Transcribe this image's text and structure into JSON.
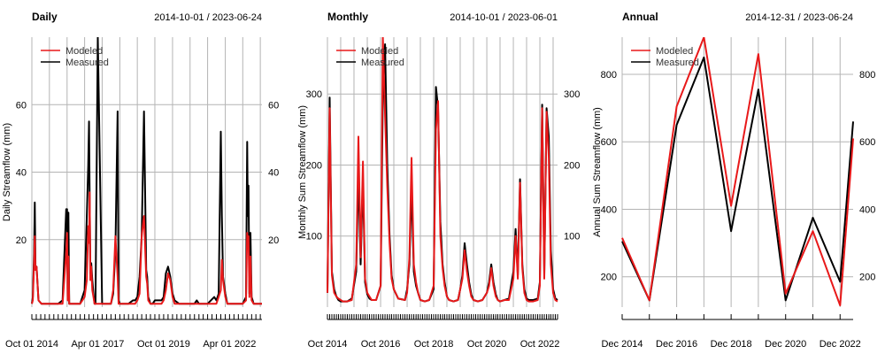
{
  "chart_data": [
    {
      "type": "line",
      "title": "Daily",
      "subtitle": "2014-10-01 / 2023-06-24",
      "xlabel": "",
      "ylabel": "Daily Streamflow (mm)",
      "ylim": [
        0,
        80
      ],
      "y_ticks": [
        20,
        40,
        60
      ],
      "right_y_ticks": [
        20,
        40,
        60
      ],
      "x_tick_labels": [
        "Oct 01 2014",
        "Apr 01 2017",
        "Oct 01 2019",
        "Apr 01 2022"
      ],
      "legend_position": "top-left",
      "grid": true,
      "x": [
        "2014-10-01",
        "2014-10-15",
        "2014-11-01",
        "2014-11-10",
        "2014-11-20",
        "2014-12-05",
        "2015-01-01",
        "2015-02-10",
        "2015-03-01",
        "2015-03-15",
        "2015-04-01",
        "2015-04-15",
        "2015-05-01",
        "2015-06-01",
        "2015-08-01",
        "2015-10-01",
        "2015-12-01",
        "2016-01-20",
        "2016-02-01",
        "2016-02-10",
        "2016-02-20",
        "2016-03-01",
        "2016-03-15",
        "2016-04-01",
        "2016-05-01",
        "2016-08-01",
        "2016-10-01",
        "2016-11-01",
        "2016-11-20",
        "2016-12-01",
        "2016-12-10",
        "2016-12-20",
        "2017-01-01",
        "2017-01-15",
        "2017-02-01",
        "2017-02-15",
        "2017-03-01",
        "2017-04-01",
        "2017-06-01",
        "2017-09-01",
        "2017-10-01",
        "2017-11-01",
        "2017-12-01",
        "2018-01-01",
        "2018-01-15",
        "2018-02-01",
        "2018-03-01",
        "2018-04-01",
        "2018-06-01",
        "2018-08-01",
        "2018-09-01",
        "2018-10-01",
        "2018-11-01",
        "2018-12-01",
        "2019-01-01",
        "2019-02-01",
        "2019-02-15",
        "2019-03-01",
        "2019-04-01",
        "2019-05-01",
        "2019-06-01",
        "2019-09-01",
        "2019-10-01",
        "2019-11-01",
        "2019-12-01",
        "2020-01-01",
        "2020-02-01",
        "2020-03-01",
        "2020-05-01",
        "2020-08-01",
        "2020-10-01",
        "2020-12-01",
        "2021-01-01",
        "2021-02-01",
        "2021-04-01",
        "2021-06-01",
        "2021-09-01",
        "2021-10-01",
        "2021-11-01",
        "2021-12-01",
        "2021-12-15",
        "2022-01-01",
        "2022-02-01",
        "2022-03-01",
        "2022-05-01",
        "2022-08-01",
        "2022-10-01",
        "2022-11-15",
        "2022-12-01",
        "2022-12-10",
        "2022-12-20",
        "2023-01-01",
        "2023-01-15",
        "2023-02-01",
        "2023-03-01",
        "2023-04-01",
        "2023-05-01",
        "2023-06-24"
      ],
      "series": [
        {
          "name": "Modeled",
          "color": "#e8191a",
          "values": [
            1,
            2,
            13,
            21,
            11,
            12,
            2,
            1,
            1,
            1,
            1,
            1,
            1,
            1,
            1,
            1,
            1,
            16,
            22,
            2,
            15,
            1,
            1,
            1,
            1,
            1,
            3,
            8,
            24,
            19,
            34,
            8,
            12,
            5,
            3,
            1,
            1,
            1,
            1,
            1,
            1,
            5,
            21,
            9,
            1,
            1,
            1,
            1,
            1,
            1,
            1,
            2,
            4,
            21,
            27,
            9,
            7,
            2,
            1,
            1,
            1,
            1,
            2,
            5,
            10,
            8,
            3,
            1,
            1,
            1,
            1,
            1,
            1,
            1,
            1,
            1,
            1,
            1,
            3,
            5,
            14,
            8,
            3,
            1,
            1,
            1,
            1,
            2,
            22,
            20,
            21,
            3,
            15,
            2,
            1,
            1,
            1,
            1
          ]
        },
        {
          "name": "Measured",
          "color": "#000000",
          "values": [
            1,
            3,
            16,
            31,
            12,
            12,
            2,
            1,
            1,
            1,
            1,
            1,
            1,
            1,
            1,
            1,
            2,
            29,
            29,
            3,
            28,
            1,
            1,
            1,
            1,
            1,
            5,
            27,
            42,
            55,
            33,
            10,
            13,
            8,
            4,
            1,
            1,
            80,
            1,
            1,
            1,
            4,
            17,
            58,
            2,
            1,
            1,
            1,
            1,
            2,
            2,
            3,
            9,
            21,
            58,
            11,
            9,
            3,
            1,
            1,
            2,
            2,
            3,
            10,
            12,
            9,
            4,
            2,
            1,
            1,
            1,
            1,
            2,
            1,
            1,
            1,
            3,
            2,
            4,
            52,
            27,
            9,
            4,
            1,
            1,
            1,
            1,
            3,
            49,
            27,
            36,
            4,
            22,
            3,
            1,
            1,
            1,
            1
          ]
        }
      ]
    },
    {
      "type": "line",
      "title": "Monthly",
      "subtitle": "2014-10-01 / 2023-06-01",
      "xlabel": "",
      "ylabel": "Monthly Sum Streamflow (mm)",
      "ylim": [
        0,
        380
      ],
      "y_ticks": [
        100,
        200,
        300
      ],
      "right_y_ticks": [
        100,
        200,
        300
      ],
      "x_tick_labels": [
        "Oct 2014",
        "Oct 2016",
        "Oct 2018",
        "Oct 2020",
        "Oct 2022"
      ],
      "legend_position": "top-left",
      "grid": true,
      "x": [
        "2014-10",
        "2014-11",
        "2014-12",
        "2015-01",
        "2015-02",
        "2015-03",
        "2015-04",
        "2015-05",
        "2015-07",
        "2015-09",
        "2015-11",
        "2015-12",
        "2016-01",
        "2016-02",
        "2016-03",
        "2016-04",
        "2016-05",
        "2016-06",
        "2016-08",
        "2016-10",
        "2016-11",
        "2016-12",
        "2017-01",
        "2017-02",
        "2017-03",
        "2017-04",
        "2017-06",
        "2017-09",
        "2017-10",
        "2017-11",
        "2017-12",
        "2018-01",
        "2018-02",
        "2018-03",
        "2018-04",
        "2018-06",
        "2018-08",
        "2018-10",
        "2018-11",
        "2018-12",
        "2019-01",
        "2019-02",
        "2019-03",
        "2019-04",
        "2019-05",
        "2019-07",
        "2019-09",
        "2019-10",
        "2019-11",
        "2019-12",
        "2020-01",
        "2020-02",
        "2020-03",
        "2020-04",
        "2020-06",
        "2020-08",
        "2020-10",
        "2020-11",
        "2020-12",
        "2021-01",
        "2021-02",
        "2021-03",
        "2021-04",
        "2021-06",
        "2021-08",
        "2021-10",
        "2021-11",
        "2021-12",
        "2022-01",
        "2022-02",
        "2022-03",
        "2022-04",
        "2022-05",
        "2022-07",
        "2022-09",
        "2022-10",
        "2022-11",
        "2022-12",
        "2023-01",
        "2023-02",
        "2023-03",
        "2023-04",
        "2023-05",
        "2023-06"
      ],
      "series": [
        {
          "name": "Modeled",
          "color": "#e8191a",
          "values": [
            20,
            280,
            45,
            20,
            15,
            12,
            10,
            8,
            8,
            10,
            60,
            240,
            70,
            205,
            40,
            20,
            15,
            10,
            10,
            30,
            380,
            270,
            170,
            90,
            40,
            25,
            12,
            10,
            20,
            70,
            210,
            60,
            35,
            20,
            10,
            8,
            10,
            30,
            250,
            290,
            100,
            55,
            30,
            15,
            10,
            8,
            10,
            25,
            40,
            80,
            50,
            30,
            15,
            10,
            8,
            10,
            20,
            30,
            55,
            30,
            15,
            10,
            8,
            10,
            10,
            40,
            100,
            40,
            175,
            55,
            20,
            10,
            8,
            8,
            10,
            30,
            280,
            40,
            275,
            210,
            60,
            20,
            10,
            8
          ]
        },
        {
          "name": "Measured",
          "color": "#000000",
          "values": [
            20,
            295,
            50,
            25,
            15,
            10,
            8,
            8,
            8,
            12,
            50,
            190,
            60,
            180,
            35,
            18,
            12,
            10,
            10,
            30,
            300,
            370,
            200,
            100,
            45,
            25,
            12,
            10,
            25,
            60,
            170,
            50,
            30,
            20,
            10,
            8,
            10,
            25,
            310,
            280,
            120,
            60,
            35,
            15,
            10,
            8,
            10,
            25,
            45,
            90,
            60,
            35,
            18,
            10,
            8,
            10,
            20,
            35,
            60,
            35,
            18,
            10,
            8,
            10,
            12,
            50,
            110,
            45,
            180,
            60,
            25,
            12,
            10,
            10,
            12,
            35,
            285,
            45,
            280,
            240,
            80,
            25,
            12,
            10
          ]
        }
      ]
    },
    {
      "type": "line",
      "title": "Annual",
      "subtitle": "2014-12-31 / 2023-06-24",
      "xlabel": "",
      "ylabel": "Annual Sum Streamflow (mm)",
      "ylim": [
        110,
        910
      ],
      "y_ticks": [
        200,
        400,
        600,
        800
      ],
      "right_y_ticks": [
        200,
        400,
        600,
        800
      ],
      "x_tick_labels": [
        "Dec 2014",
        "Dec 2016",
        "Dec 2018",
        "Dec 2020",
        "Dec 2022"
      ],
      "legend_position": "top-left",
      "grid": true,
      "x": [
        "2014-12-31",
        "2015-12-31",
        "2016-12-31",
        "2017-12-31",
        "2018-12-31",
        "2019-12-31",
        "2020-12-31",
        "2021-12-31",
        "2022-12-31",
        "2023-06-24"
      ],
      "series": [
        {
          "name": "Modeled",
          "color": "#e8191a",
          "values": [
            315,
            130,
            705,
            910,
            410,
            860,
            150,
            335,
            115,
            610
          ]
        },
        {
          "name": "Measured",
          "color": "#000000",
          "values": [
            305,
            130,
            650,
            850,
            335,
            755,
            130,
            375,
            185,
            660
          ]
        }
      ]
    }
  ]
}
